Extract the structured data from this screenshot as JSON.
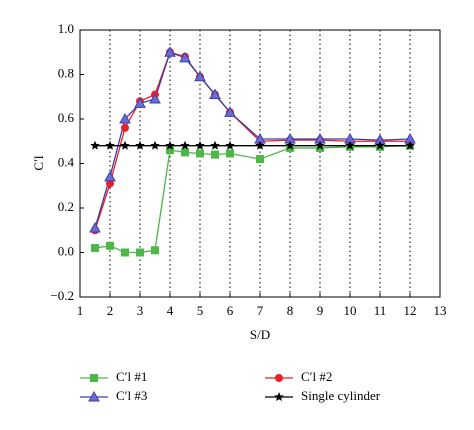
{
  "chart_data": {
    "type": "line",
    "x_label": "S/D",
    "y_label": "C′l",
    "x": [
      1.5,
      2,
      2.5,
      3,
      3.5,
      4,
      4.5,
      5,
      5.5,
      6,
      7,
      8,
      9,
      10,
      11,
      12
    ],
    "series": [
      {
        "name": "C′l #1",
        "color": "#4db848",
        "marker": "square",
        "values": [
          0.02,
          0.03,
          0.0,
          0.0,
          0.01,
          0.46,
          0.45,
          0.445,
          0.44,
          0.445,
          0.42,
          0.47,
          0.47,
          0.475,
          0.475,
          0.48
        ]
      },
      {
        "name": "C′l #2",
        "color": "#e8202a",
        "marker": "circle",
        "values": [
          0.1,
          0.31,
          0.56,
          0.68,
          0.71,
          0.9,
          0.88,
          0.79,
          0.71,
          0.63,
          0.5,
          0.505,
          0.505,
          0.5,
          0.5,
          0.5
        ]
      },
      {
        "name": "C′l #3",
        "color": "#3b3ea8",
        "marker": "triangle",
        "values": [
          0.11,
          0.34,
          0.6,
          0.67,
          0.69,
          0.9,
          0.875,
          0.79,
          0.71,
          0.63,
          0.51,
          0.51,
          0.51,
          0.51,
          0.505,
          0.51
        ]
      },
      {
        "name": "Single cylinder",
        "color": "#000000",
        "marker": "star",
        "values": [
          0.48,
          0.48,
          0.48,
          0.48,
          0.48,
          0.48,
          0.48,
          0.48,
          0.48,
          0.48,
          0.48,
          0.48,
          0.48,
          0.48,
          0.48,
          0.48
        ]
      }
    ],
    "xlim": [
      1,
      13
    ],
    "xticks": [
      1,
      2,
      3,
      4,
      5,
      6,
      7,
      8,
      9,
      10,
      11,
      12,
      13
    ],
    "ylim": [
      -0.2,
      1.0
    ],
    "yticks": [
      {
        "value": -0.2,
        "label": "−0.2"
      },
      {
        "value": 0,
        "label": "0.0"
      },
      0.2,
      0.4,
      0.6,
      0.8,
      {
        "value": 1.0,
        "label": "1.0"
      }
    ],
    "vertical_grid": "dotted"
  }
}
